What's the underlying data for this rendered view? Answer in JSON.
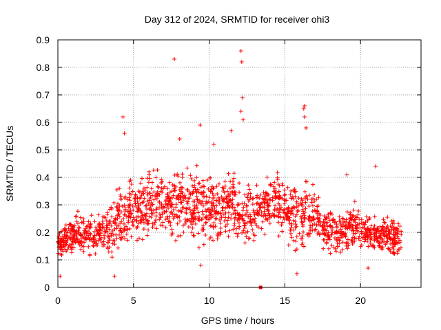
{
  "chart_data": {
    "type": "scatter",
    "title": "Day 312 of 2024, SRMTID for receiver ohi3",
    "xlabel": "GPS time / hours",
    "ylabel": "SRMTID / TECUs",
    "xlim": [
      0,
      24
    ],
    "ylim": [
      0,
      0.9
    ],
    "xticks": [
      "0",
      "5",
      "10",
      "15",
      "20"
    ],
    "yticks": [
      "0",
      "0.1",
      "0.2",
      "0.3",
      "0.4",
      "0.5",
      "0.6",
      "0.7",
      "0.8",
      "0.9"
    ],
    "grid": true,
    "series_color": "#ff0000",
    "marker": "plus",
    "outliers": [
      {
        "x": 0.15,
        "y": 0.04
      },
      {
        "x": 3.75,
        "y": 0.04
      },
      {
        "x": 4.3,
        "y": 0.62
      },
      {
        "x": 4.4,
        "y": 0.56
      },
      {
        "x": 7.7,
        "y": 0.83
      },
      {
        "x": 8.05,
        "y": 0.54
      },
      {
        "x": 9.4,
        "y": 0.59
      },
      {
        "x": 11.45,
        "y": 0.57
      },
      {
        "x": 12.1,
        "y": 0.86
      },
      {
        "x": 12.15,
        "y": 0.82
      },
      {
        "x": 12.2,
        "y": 0.69
      },
      {
        "x": 12.1,
        "y": 0.64
      },
      {
        "x": 12.25,
        "y": 0.61
      },
      {
        "x": 13.4,
        "y": 0.0
      },
      {
        "x": 15.8,
        "y": 0.05
      },
      {
        "x": 16.25,
        "y": 0.65
      },
      {
        "x": 16.3,
        "y": 0.66
      },
      {
        "x": 16.3,
        "y": 0.62
      },
      {
        "x": 16.4,
        "y": 0.58
      },
      {
        "x": 20.5,
        "y": 0.07
      },
      {
        "x": 21.0,
        "y": 0.44
      },
      {
        "x": 19.1,
        "y": 0.41
      },
      {
        "x": 10.3,
        "y": 0.52
      },
      {
        "x": 9.45,
        "y": 0.08
      }
    ],
    "envelope": [
      {
        "x": 0.0,
        "lo": 0.1,
        "hi": 0.22
      },
      {
        "x": 1.0,
        "lo": 0.1,
        "hi": 0.28
      },
      {
        "x": 2.0,
        "lo": 0.09,
        "hi": 0.3
      },
      {
        "x": 3.0,
        "lo": 0.1,
        "hi": 0.3
      },
      {
        "x": 3.7,
        "lo": 0.07,
        "hi": 0.36
      },
      {
        "x": 4.5,
        "lo": 0.12,
        "hi": 0.42
      },
      {
        "x": 5.5,
        "lo": 0.13,
        "hi": 0.44
      },
      {
        "x": 6.5,
        "lo": 0.16,
        "hi": 0.46
      },
      {
        "x": 7.5,
        "lo": 0.16,
        "hi": 0.46
      },
      {
        "x": 8.5,
        "lo": 0.16,
        "hi": 0.47
      },
      {
        "x": 9.5,
        "lo": 0.12,
        "hi": 0.46
      },
      {
        "x": 10.5,
        "lo": 0.14,
        "hi": 0.42
      },
      {
        "x": 11.5,
        "lo": 0.14,
        "hi": 0.46
      },
      {
        "x": 12.3,
        "lo": 0.09,
        "hi": 0.44
      },
      {
        "x": 13.0,
        "lo": 0.14,
        "hi": 0.38
      },
      {
        "x": 14.0,
        "lo": 0.17,
        "hi": 0.48
      },
      {
        "x": 15.0,
        "lo": 0.15,
        "hi": 0.44
      },
      {
        "x": 15.8,
        "lo": 0.06,
        "hi": 0.4
      },
      {
        "x": 16.5,
        "lo": 0.12,
        "hi": 0.42
      },
      {
        "x": 17.5,
        "lo": 0.12,
        "hi": 0.33
      },
      {
        "x": 18.5,
        "lo": 0.08,
        "hi": 0.3
      },
      {
        "x": 19.5,
        "lo": 0.12,
        "hi": 0.34
      },
      {
        "x": 20.5,
        "lo": 0.12,
        "hi": 0.28
      },
      {
        "x": 21.5,
        "lo": 0.1,
        "hi": 0.28
      },
      {
        "x": 22.7,
        "lo": 0.08,
        "hi": 0.27
      }
    ],
    "point_count": 1800
  }
}
